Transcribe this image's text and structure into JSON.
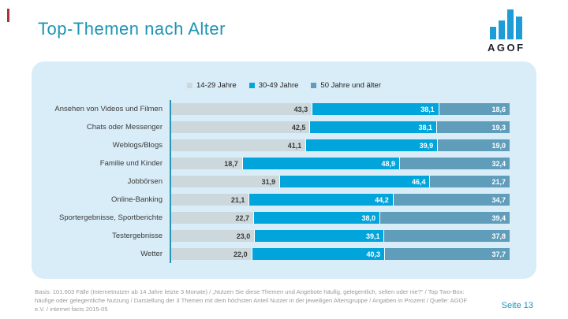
{
  "page": {
    "title": "Top-Themen nach Alter",
    "page_number_label": "Seite 13"
  },
  "logo": {
    "text": "AGOF"
  },
  "legend": {
    "items": [
      {
        "label": "14-29 Jahre",
        "color": "#cdd8dd"
      },
      {
        "label": "30-49 Jahre",
        "color": "#02a5db"
      },
      {
        "label": "50 Jahre und älter",
        "color": "#609dbb"
      }
    ]
  },
  "chart_data": {
    "type": "bar",
    "orientation": "horizontal",
    "stacked": true,
    "unit": "percent",
    "xlim": [
      0,
      100
    ],
    "value_format": "decimal-comma",
    "categories": [
      "Ansehen von Videos und Filmen",
      "Chats oder Messenger",
      "Weblogs/Blogs",
      "Familie und Kinder",
      "Jobbörsen",
      "Online-Banking",
      "Sportergebnisse, Sportberichte",
      "Testergebnisse",
      "Wetter"
    ],
    "series": [
      {
        "name": "14-29 Jahre",
        "color": "#cdd8dd",
        "label_color": "#3a3a3a",
        "values": [
          43.3,
          42.5,
          41.1,
          18.7,
          31.9,
          21.1,
          22.7,
          23.0,
          22.0
        ]
      },
      {
        "name": "30-49 Jahre",
        "color": "#02a5db",
        "label_color": "#ffffff",
        "values": [
          38.1,
          38.1,
          39.9,
          48.9,
          46.4,
          44.2,
          38.0,
          39.1,
          40.3
        ]
      },
      {
        "name": "50 Jahre und älter",
        "color": "#609dbb",
        "label_color": "#ffffff",
        "values": [
          18.6,
          19.3,
          19.0,
          32.4,
          21.7,
          34.7,
          39.4,
          37.8,
          37.7
        ]
      }
    ]
  },
  "footer": {
    "note": "Basis: 101.603 Fälle (Internetnutzer ab 14 Jahre letzte 3 Monate) / „Nutzen Sie diese Themen und Angebote häufig, gelegentlich, selten oder nie?“ / Top Two-Box: häufige oder gelegentliche Nutzung / Darstellung der 3 Themen mit dem höchsten Anteil Nutzer in der jeweiligen Altersgruppe / Angaben in Prozent / Quelle: AGOF e.V. / internet facts 2015-05"
  },
  "colors": {
    "title": "#1e94b4",
    "panel_bg": "#d9edf8",
    "axis_line": "#2a93b8",
    "footer_text": "#9a9a9a",
    "logo_bars": "#1e9cd7"
  }
}
